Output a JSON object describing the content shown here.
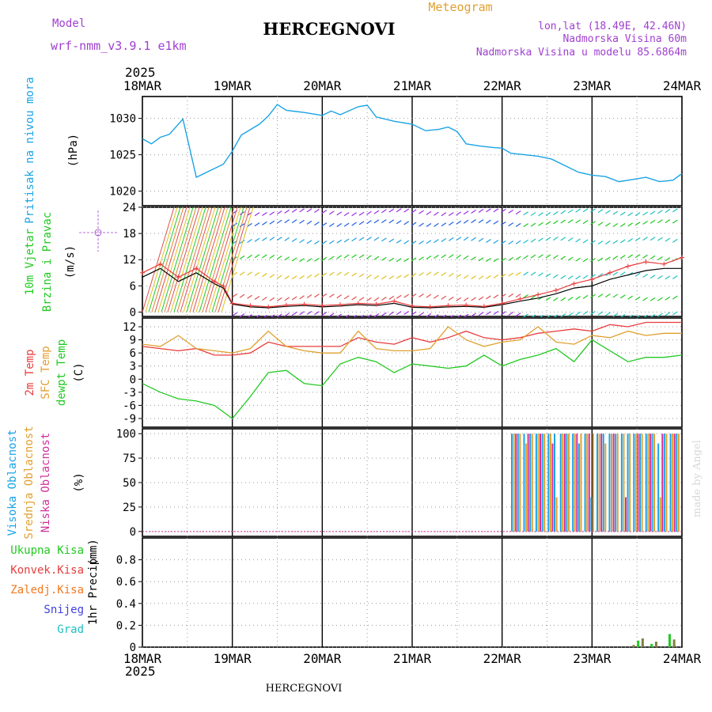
{
  "header": {
    "model_label": "Model",
    "model_name": "wrf-nmm_v3.9.1 e1km",
    "title": "HERCEGNOVI",
    "subtitle": "Meteogram",
    "lonlat": "lon,lat (18.49E, 42.46N)",
    "elevation": "Nadmorska Visina 60m",
    "model_elevation": "Nadmorska Visina u modelu 85.6864m",
    "credit": "made by Angel"
  },
  "footer": {
    "station": "HERCEGNOVI"
  },
  "x_axis": {
    "year_top": "2025",
    "year_bottom": "2025",
    "ticks": [
      "18MAR",
      "19MAR",
      "20MAR",
      "21MAR",
      "22MAR",
      "23MAR",
      "24MAR"
    ]
  },
  "colors": {
    "pressure": "#1aa3e6",
    "temp": "#e83c3c",
    "sfc": "#e0a030",
    "dewpt": "#22c922",
    "wind_measured": "#000000",
    "cloud_high": "#1aa3e6",
    "cloud_mid": "#e0a030",
    "cloud_low": "#d0309a",
    "precip_total": "#22c922",
    "precip_conv": "#e83c3c",
    "precip_frozen": "#f07820",
    "precip_snow": "#4040e0",
    "precip_grad": "#20c0c0"
  },
  "chart_data": [
    {
      "type": "line",
      "panel": "pressure",
      "ylabel_side": "Pritisak na nivou mora",
      "unit": "(hPa)",
      "ylim": [
        1018,
        1033
      ],
      "yticks": [
        1020,
        1025,
        1030
      ],
      "grid": true,
      "x": [
        0,
        0.1,
        0.2,
        0.3,
        0.45,
        0.6,
        0.75,
        0.9,
        1.0,
        1.1,
        1.3,
        1.4,
        1.5,
        1.6,
        1.8,
        2.0,
        2.1,
        2.2,
        2.4,
        2.5,
        2.6,
        2.8,
        3.0,
        3.15,
        3.3,
        3.4,
        3.5,
        3.6,
        3.75,
        3.9,
        4.0,
        4.1,
        4.25,
        4.4,
        4.55,
        4.7,
        4.85,
        5.0,
        5.15,
        5.3,
        5.45,
        5.6,
        5.75,
        5.9,
        6.0
      ],
      "series": [
        {
          "name": "",
          "values": [
            1027.2,
            1026.5,
            1027.4,
            1027.8,
            1029.9,
            1021.9,
            1022.8,
            1023.7,
            1025.5,
            1027.7,
            1029.2,
            1030.3,
            1031.9,
            1031.1,
            1030.8,
            1030.4,
            1031.0,
            1030.5,
            1031.6,
            1031.8,
            1030.2,
            1029.6,
            1029.2,
            1028.3,
            1028.5,
            1028.8,
            1028.2,
            1026.5,
            1026.2,
            1026.0,
            1025.9,
            1025.2,
            1025.0,
            1024.8,
            1024.4,
            1023.5,
            1022.6,
            1022.2,
            1022.0,
            1021.3,
            1021.6,
            1021.9,
            1021.3,
            1021.5,
            1022.4
          ]
        }
      ]
    },
    {
      "type": "line",
      "panel": "wind",
      "ylabel_side": "10m Vjetar",
      "ylabel_side2": "Brzina i Pravac",
      "unit": "(m/s)",
      "compass": "N\n> - |- <\nW        E",
      "ylim": [
        -1,
        24
      ],
      "yticks": [
        0,
        6,
        12,
        18,
        24
      ],
      "grid": true,
      "x": [
        0,
        0.2,
        0.4,
        0.6,
        0.8,
        0.9,
        1.0,
        1.2,
        1.4,
        1.6,
        1.8,
        2.0,
        2.2,
        2.4,
        2.6,
        2.8,
        3.0,
        3.2,
        3.4,
        3.6,
        3.8,
        4.0,
        4.2,
        4.4,
        4.6,
        4.8,
        5.0,
        5.2,
        5.4,
        5.6,
        5.8,
        6.0
      ],
      "series": [
        {
          "name": "",
          "values": [
            9,
            11,
            8,
            10,
            7,
            6,
            2,
            1.5,
            1.2,
            1.6,
            1.8,
            1.5,
            1.7,
            2.0,
            1.8,
            2.5,
            1.4,
            1.2,
            1.5,
            1.6,
            1.3,
            2.0,
            3.0,
            4.0,
            5.0,
            6.5,
            7.5,
            9.0,
            10.5,
            11.5,
            11.0,
            12.5
          ]
        },
        {
          "name": "",
          "values": [
            8,
            10,
            7,
            9,
            6.5,
            5.5,
            1.8,
            1.2,
            1.0,
            1.3,
            1.5,
            1.2,
            1.4,
            1.7,
            1.5,
            2.0,
            1.1,
            1.0,
            1.2,
            1.3,
            1.1,
            1.7,
            2.5,
            3.2,
            4.2,
            5.5,
            6.0,
            7.5,
            8.5,
            9.5,
            10.0,
            10.0
          ]
        }
      ]
    },
    {
      "type": "line",
      "panel": "temperature",
      "ylabel_side": "2m Temp",
      "ylabel_side2": "SFC Temp",
      "ylabel_side3": "dewpt Temp",
      "unit": "(C)",
      "ylim": [
        -11,
        14
      ],
      "yticks": [
        -9,
        -6,
        -3,
        0,
        3,
        6,
        9,
        12
      ],
      "grid": true,
      "x": [
        0,
        0.2,
        0.4,
        0.6,
        0.8,
        1.0,
        1.2,
        1.4,
        1.6,
        1.8,
        2.0,
        2.2,
        2.4,
        2.6,
        2.8,
        3.0,
        3.2,
        3.4,
        3.6,
        3.8,
        4.0,
        4.2,
        4.4,
        4.6,
        4.8,
        5.0,
        5.2,
        5.4,
        5.6,
        5.8,
        6.0
      ],
      "series": [
        {
          "name": "",
          "values": [
            7.5,
            7.0,
            6.5,
            7.0,
            5.5,
            5.5,
            6.0,
            8.5,
            7.5,
            7.5,
            7.5,
            7.5,
            9.5,
            8.5,
            8.0,
            9.5,
            8.5,
            9.5,
            11.0,
            9.5,
            9.0,
            9.5,
            10.5,
            11.0,
            11.5,
            11.0,
            12.5,
            12.0,
            13.0,
            13.0,
            13.0
          ]
        },
        {
          "name": "",
          "values": [
            8.0,
            7.5,
            10.0,
            7.0,
            6.5,
            6.0,
            7.0,
            11.0,
            7.5,
            6.5,
            6.0,
            6.0,
            11.0,
            7.0,
            6.5,
            6.5,
            7.0,
            12.0,
            9.0,
            7.5,
            8.5,
            9.0,
            12.0,
            8.5,
            8.0,
            10.0,
            9.5,
            11.0,
            10.0,
            10.5,
            10.5
          ]
        },
        {
          "name": "",
          "values": [
            -1.0,
            -3.0,
            -4.5,
            -5.0,
            -6.0,
            -9.0,
            -4.0,
            1.5,
            2.0,
            -1.0,
            -1.5,
            3.5,
            5.0,
            4.0,
            1.5,
            3.5,
            3.0,
            2.5,
            3.0,
            5.5,
            3.0,
            4.5,
            5.5,
            7.0,
            4.0,
            9.0,
            6.5,
            4.0,
            5.0,
            5.0,
            5.5
          ]
        }
      ]
    },
    {
      "type": "bar",
      "panel": "clouds",
      "ylabel_side": "Visoka Oblacnost",
      "ylabel_side2": "Srednja Oblacnost",
      "ylabel_side3": "Niska Oblacnost",
      "unit": "(%)",
      "ylim": [
        -5,
        105
      ],
      "yticks": [
        0,
        25,
        50,
        75,
        100
      ],
      "grid": true,
      "x_range": [
        0,
        6
      ],
      "bar_region": [
        4.1,
        6.0
      ],
      "bar_count": 84,
      "series": [
        {
          "name": "",
          "pattern": "mostly 100"
        },
        {
          "name": "",
          "pattern": "mostly 100"
        },
        {
          "name": "",
          "pattern": "intermittent"
        }
      ]
    },
    {
      "type": "bar",
      "panel": "precip",
      "ylabel_side": "1hr Precip",
      "unit": "(mm)",
      "legend": [
        "Ukupna Kisa",
        "Konvek.Kisa",
        "Zaledj.Kisa",
        "Snijeg",
        "Grad"
      ],
      "ylim": [
        0,
        1.0
      ],
      "yticks": [
        0,
        0.2,
        0.4,
        0.6,
        0.8
      ],
      "grid": true,
      "x": [
        5.45,
        5.5,
        5.55,
        5.65,
        5.7,
        5.85,
        5.9
      ],
      "series": [
        {
          "name": "",
          "values": [
            0.02,
            0.06,
            0.08,
            0.03,
            0.05,
            0.12,
            0.07
          ]
        }
      ]
    }
  ]
}
